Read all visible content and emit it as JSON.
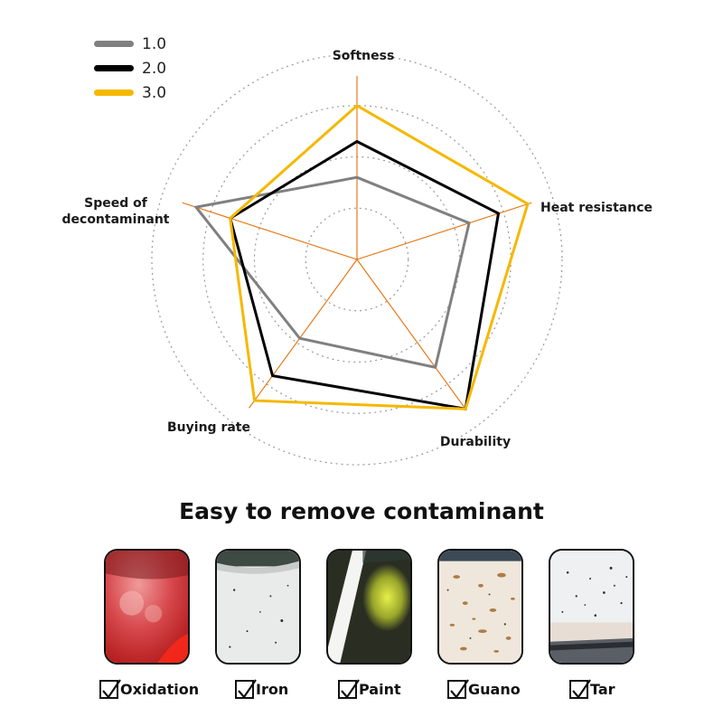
{
  "chart_data": {
    "type": "radar",
    "axes": [
      "Softness",
      "Heat resistance",
      "Durability",
      "Buying rate",
      "Speed of decontaminant"
    ],
    "range": [
      0,
      4
    ],
    "rings": [
      1,
      2,
      3,
      4
    ],
    "series": [
      {
        "name": "1.0",
        "color": "#808080",
        "values": [
          1.6,
          2.3,
          2.6,
          1.9,
          3.3
        ]
      },
      {
        "name": "2.0",
        "color": "#000000",
        "values": [
          2.3,
          2.9,
          3.6,
          2.8,
          2.6
        ]
      },
      {
        "name": "3.0",
        "color": "#f5b800",
        "values": [
          3.0,
          3.5,
          3.6,
          3.4,
          2.6
        ]
      }
    ],
    "spoke_color": "#e8700a",
    "grid": "dotted",
    "legend_position": "top-left"
  },
  "legend": [
    {
      "label": "1.0",
      "color": "#808080"
    },
    {
      "label": "2.0",
      "color": "#000000"
    },
    {
      "label": "3.0",
      "color": "#f5b800"
    }
  ],
  "axis_labels": {
    "softness": "Softness",
    "heat": "Heat resistance",
    "durability": "Durability",
    "buying": "Buying rate",
    "speed_line1": "Speed of",
    "speed_line2": "decontaminant"
  },
  "headline": "Easy to remove contaminant",
  "contaminants": [
    {
      "label": "Oxidation"
    },
    {
      "label": "Iron"
    },
    {
      "label": "Paint"
    },
    {
      "label": "Guano"
    },
    {
      "label": "Tar"
    }
  ]
}
